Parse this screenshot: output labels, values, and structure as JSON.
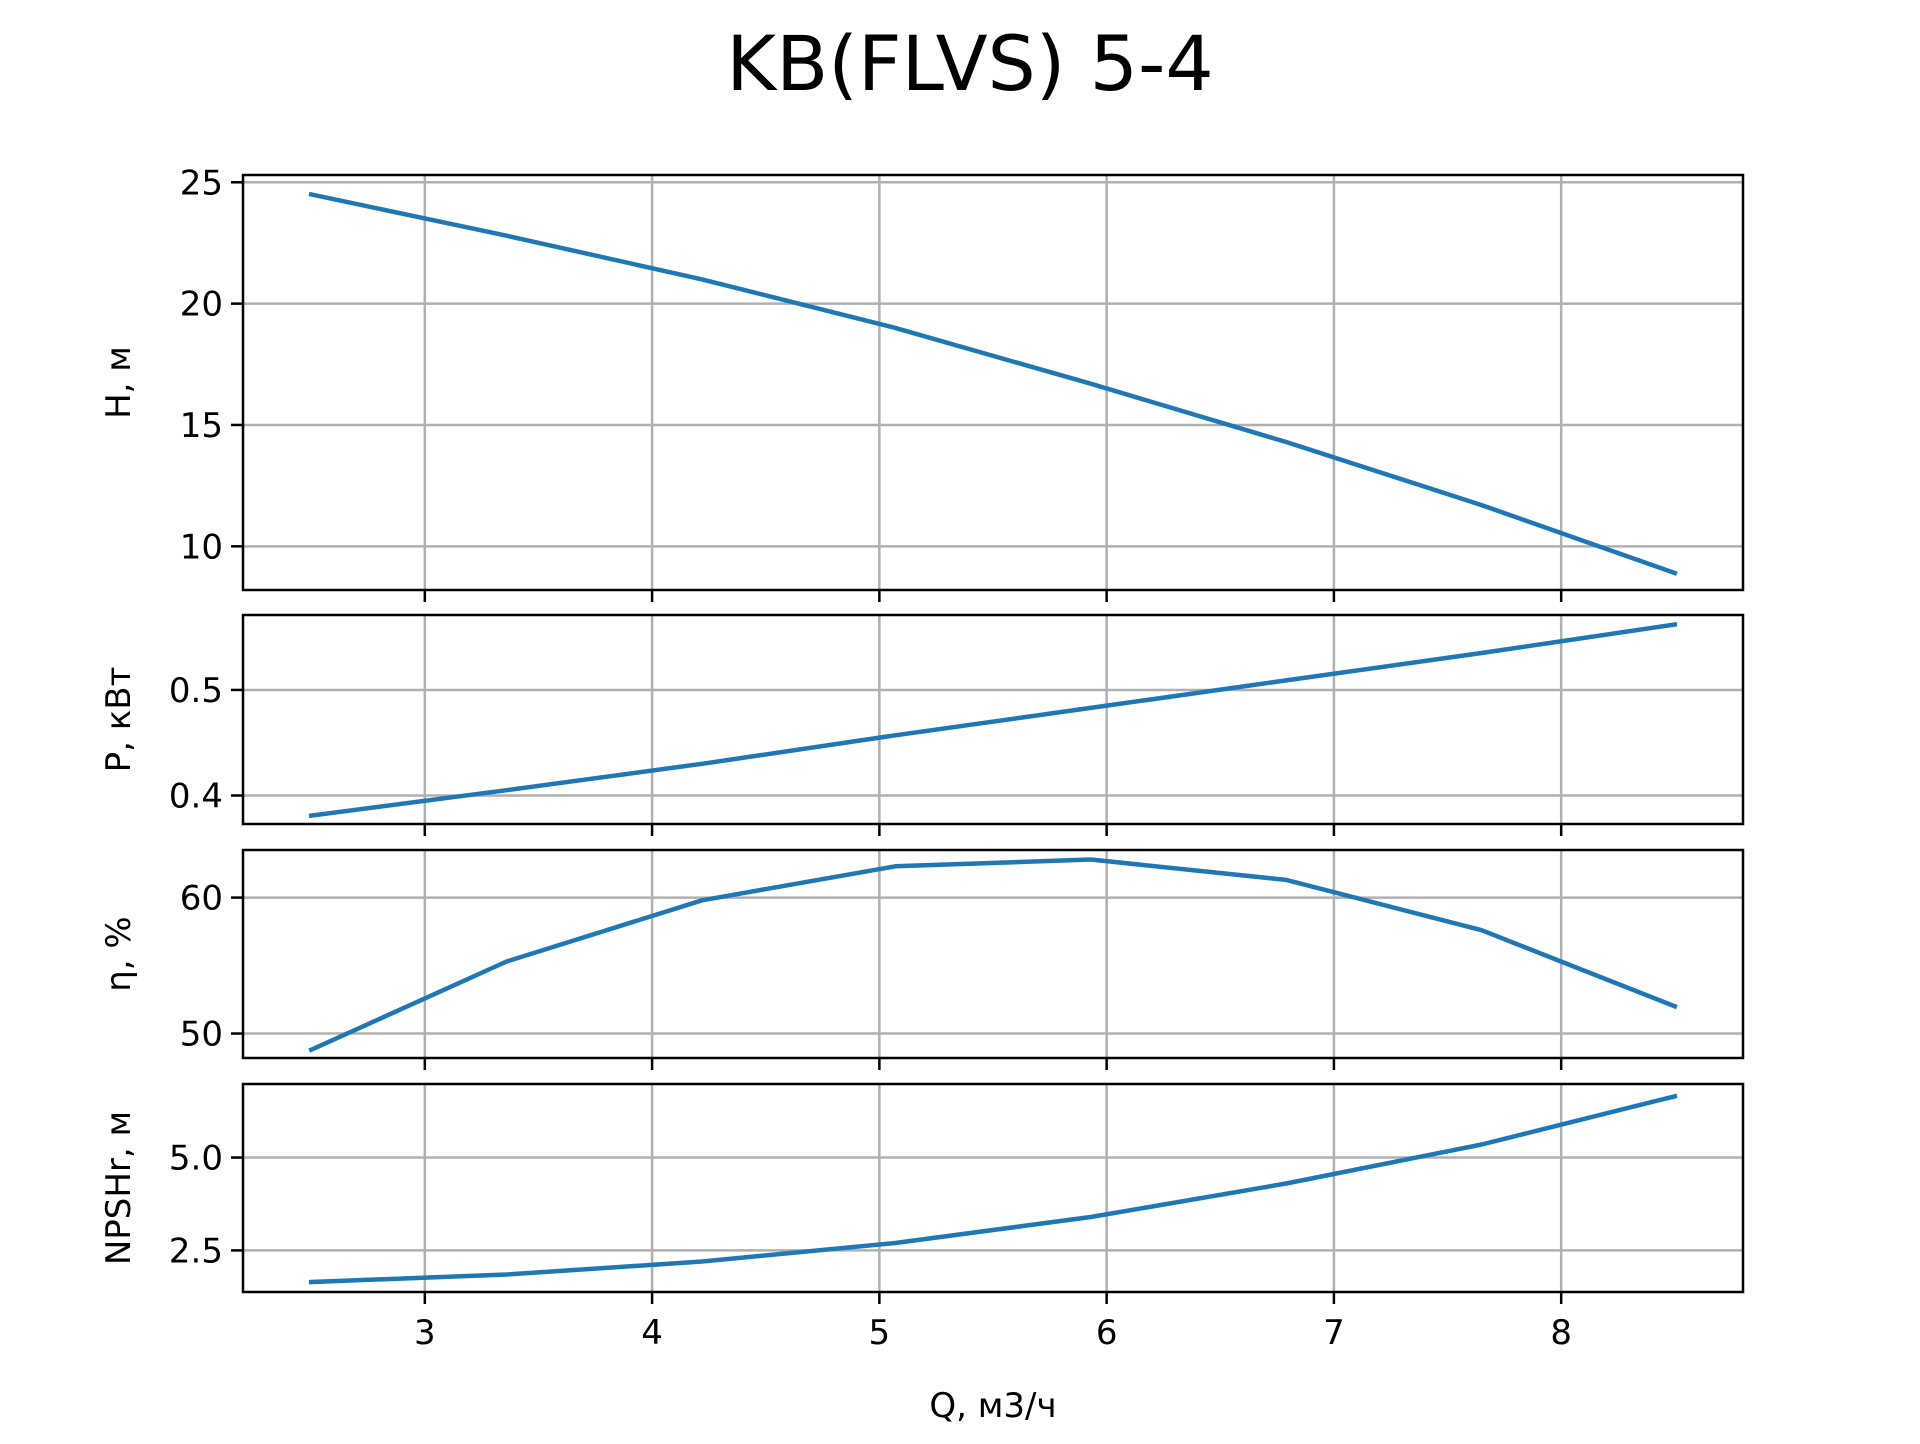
{
  "chart_data": {
    "type": "line",
    "title": "KB(FLVS) 5-4",
    "xlabel": "Q, м3/ч",
    "x": [
      2.5,
      3.36,
      4.22,
      5.07,
      5.93,
      6.79,
      7.65,
      8.5
    ],
    "xlim": [
      2.2,
      8.8
    ],
    "xticks": [
      3,
      4,
      5,
      6,
      7,
      8
    ],
    "xtick_labels": [
      "3",
      "4",
      "5",
      "6",
      "7",
      "8"
    ],
    "grid": true,
    "line_color": "#1f77b4",
    "panels": [
      {
        "ylabel": "H, м",
        "ylim": [
          8.2,
          25.3
        ],
        "yticks": [
          10,
          15,
          20,
          25
        ],
        "ytick_labels": [
          "10",
          "15",
          "20",
          "25"
        ],
        "values": [
          24.5,
          22.8,
          21.0,
          19.0,
          16.7,
          14.3,
          11.7,
          8.9
        ]
      },
      {
        "ylabel": "P, кВт",
        "ylim": [
          0.373,
          0.571
        ],
        "yticks": [
          0.4,
          0.5
        ],
        "ytick_labels": [
          "0.4",
          "0.5"
        ],
        "values": [
          0.381,
          0.405,
          0.43,
          0.457,
          0.483,
          0.509,
          0.535,
          0.562
        ]
      },
      {
        "ylabel": "η, %",
        "ylim": [
          48.2,
          63.5
        ],
        "yticks": [
          50,
          60
        ],
        "ytick_labels": [
          "50",
          "60"
        ],
        "values": [
          48.8,
          55.3,
          59.8,
          62.3,
          62.8,
          61.3,
          57.6,
          52.0
        ]
      },
      {
        "ylabel": "NPSHr, м",
        "ylim": [
          1.38,
          6.98
        ],
        "yticks": [
          2.5,
          5.0
        ],
        "ytick_labels": [
          "2.5",
          "5.0"
        ],
        "values": [
          1.65,
          1.85,
          2.2,
          2.7,
          3.4,
          4.3,
          5.35,
          6.65
        ]
      }
    ]
  }
}
